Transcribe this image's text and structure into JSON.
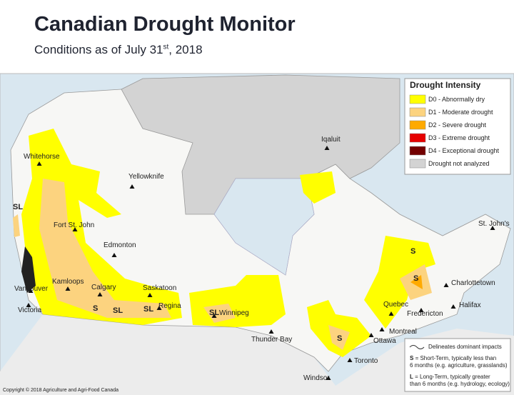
{
  "header": {
    "title": "Canadian Drought Monitor",
    "subtitle": [
      "Conditions as of July 31",
      "st",
      ", 2018"
    ]
  },
  "legend": {
    "title": "Drought Intensity",
    "items": [
      {
        "label": "D0 - Abnormally dry",
        "color": "#ffff00"
      },
      {
        "label": "D1 - Moderate drought",
        "color": "#fcd37f"
      },
      {
        "label": "D2 - Severe drought",
        "color": "#ffaa00"
      },
      {
        "label": "D3 - Extreme drought",
        "color": "#e60000"
      },
      {
        "label": "D4 - Exceptional drought",
        "color": "#730000"
      },
      {
        "label": "Drought not analyzed",
        "color": "#d3d3d3"
      }
    ]
  },
  "cities": [
    "Whitehorse",
    "Yellowknife",
    "Iqaluit",
    "Fort St. John",
    "Edmonton",
    "Kamloops",
    "Calgary",
    "Vancouver",
    "Victoria",
    "Saskatoon",
    "Regina",
    "Winnipeg",
    "Thunder Bay",
    "Toronto",
    "Windsor",
    "Ottawa",
    "Montreal",
    "Quebec",
    "Fredericton",
    "Charlottetown",
    "Halifax",
    "St. John's"
  ],
  "impact_labels": [
    "SL",
    "S",
    "S",
    "S",
    "SL",
    "SL",
    "SL",
    "S"
  ],
  "notes": {
    "line": "Delineates dominant impacts",
    "short": {
      "key": "S",
      "text": " = Short-Term, typically less than 6 months (e.g. agriculture, grasslands)"
    },
    "long": {
      "key": "L",
      "text": " = Long-Term, typically greater than 6 months (e.g. hydrology, ecology)"
    }
  },
  "copyright": "Copyright © 2018 Agriculture and Agri-Food Canada"
}
